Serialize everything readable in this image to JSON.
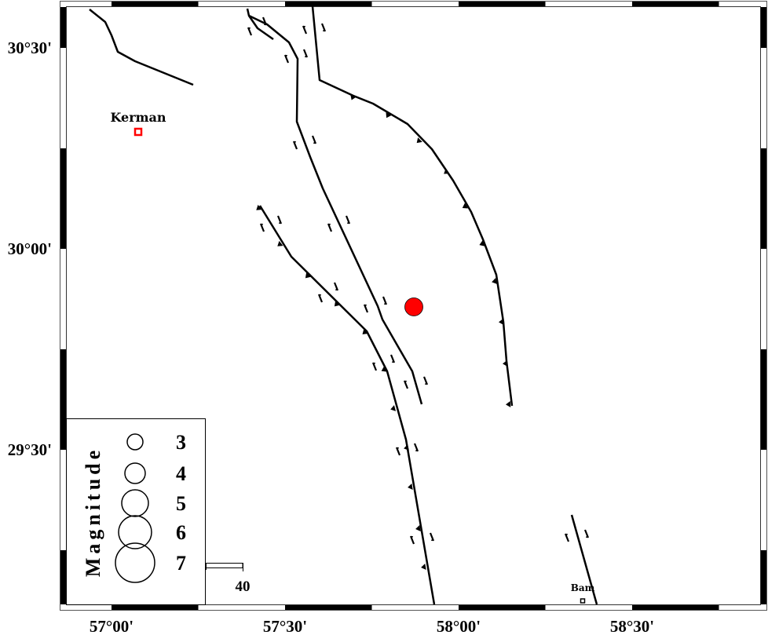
{
  "map": {
    "longitude_labels": [
      "57°00'",
      "57°30'",
      "58°00'",
      "58°30'"
    ],
    "latitude_labels": [
      "30°30'",
      "30°00'",
      "29°30'"
    ],
    "cities": [
      {
        "name": "Kerman",
        "marker_color": "#ff0000"
      },
      {
        "name": "Bam",
        "marker_color": "#000000"
      }
    ],
    "epicenter": {
      "color": "#ff0000"
    },
    "scale_bar": {
      "label": "40"
    }
  },
  "legend": {
    "title": "Magnitude",
    "entries": [
      "3",
      "4",
      "5",
      "6",
      "7"
    ]
  }
}
